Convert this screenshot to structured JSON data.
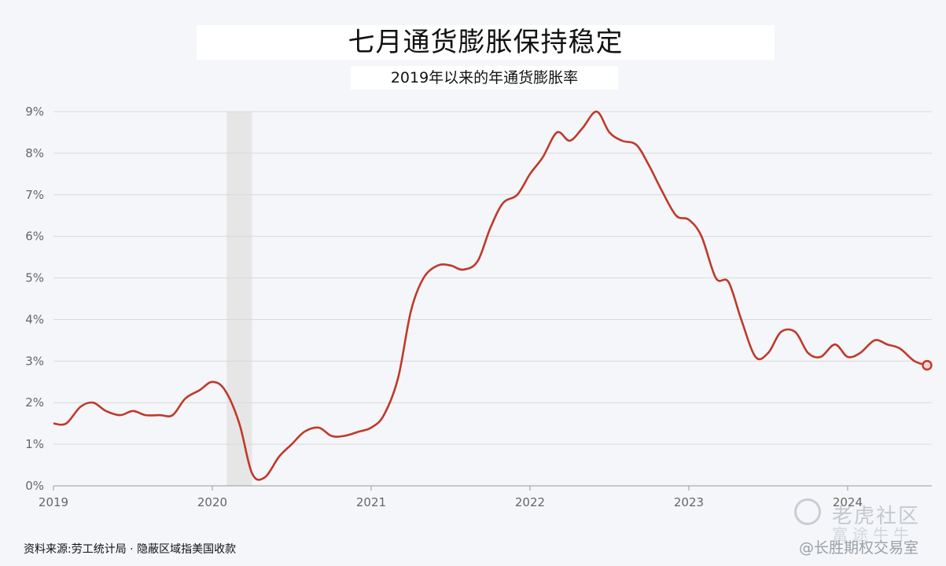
{
  "title": "七月通货膨胀保持稳定",
  "subtitle": "2019年以来的年通货膨胀率",
  "source": "资料来源:劳工统计局 · 隐蔽区域指美国收款",
  "watermark": {
    "line1": "老虎社区",
    "line2": "富途牛牛",
    "line3": "@长胜期权交易室"
  },
  "colors": {
    "line": "#c0392b",
    "shade": "#e6e6e6",
    "grid": "#d9d9d9"
  },
  "chart_data": {
    "type": "line",
    "title": "七月通货膨胀保持稳定",
    "subtitle": "2019年以来的年通货膨胀率",
    "xlim": [
      2019.0,
      2024.53
    ],
    "ylim": [
      0,
      9
    ],
    "x_ticks": [
      "2019",
      "2020",
      "2021",
      "2022",
      "2023",
      "2024"
    ],
    "y_ticks": [
      "0%",
      "1%",
      "2%",
      "3%",
      "4%",
      "5%",
      "6%",
      "7%",
      "8%",
      "9%"
    ],
    "shaded_region": [
      2020.09,
      2020.25
    ],
    "grid": true,
    "series": [
      {
        "values": [
          [
            2019.0,
            1.5
          ],
          [
            2019.08,
            1.5
          ],
          [
            2019.17,
            1.9
          ],
          [
            2019.25,
            2.0
          ],
          [
            2019.33,
            1.8
          ],
          [
            2019.42,
            1.7
          ],
          [
            2019.5,
            1.8
          ],
          [
            2019.58,
            1.7
          ],
          [
            2019.67,
            1.7
          ],
          [
            2019.75,
            1.7
          ],
          [
            2019.83,
            2.1
          ],
          [
            2019.92,
            2.3
          ],
          [
            2020.0,
            2.5
          ],
          [
            2020.08,
            2.3
          ],
          [
            2020.17,
            1.5
          ],
          [
            2020.25,
            0.3
          ],
          [
            2020.33,
            0.2
          ],
          [
            2020.42,
            0.7
          ],
          [
            2020.5,
            1.0
          ],
          [
            2020.58,
            1.3
          ],
          [
            2020.67,
            1.4
          ],
          [
            2020.75,
            1.2
          ],
          [
            2020.83,
            1.2
          ],
          [
            2020.92,
            1.3
          ],
          [
            2021.0,
            1.4
          ],
          [
            2021.08,
            1.7
          ],
          [
            2021.17,
            2.6
          ],
          [
            2021.25,
            4.2
          ],
          [
            2021.33,
            5.0
          ],
          [
            2021.42,
            5.3
          ],
          [
            2021.5,
            5.3
          ],
          [
            2021.58,
            5.2
          ],
          [
            2021.67,
            5.4
          ],
          [
            2021.75,
            6.2
          ],
          [
            2021.83,
            6.8
          ],
          [
            2021.92,
            7.0
          ],
          [
            2022.0,
            7.5
          ],
          [
            2022.08,
            7.9
          ],
          [
            2022.17,
            8.5
          ],
          [
            2022.25,
            8.3
          ],
          [
            2022.33,
            8.6
          ],
          [
            2022.42,
            9.0
          ],
          [
            2022.5,
            8.5
          ],
          [
            2022.58,
            8.3
          ],
          [
            2022.67,
            8.2
          ],
          [
            2022.75,
            7.7
          ],
          [
            2022.83,
            7.1
          ],
          [
            2022.92,
            6.5
          ],
          [
            2023.0,
            6.4
          ],
          [
            2023.08,
            6.0
          ],
          [
            2023.17,
            5.0
          ],
          [
            2023.25,
            4.9
          ],
          [
            2023.33,
            4.0
          ],
          [
            2023.42,
            3.1
          ],
          [
            2023.5,
            3.2
          ],
          [
            2023.58,
            3.7
          ],
          [
            2023.67,
            3.7
          ],
          [
            2023.75,
            3.2
          ],
          [
            2023.83,
            3.1
          ],
          [
            2023.92,
            3.4
          ],
          [
            2024.0,
            3.1
          ],
          [
            2024.08,
            3.2
          ],
          [
            2024.17,
            3.5
          ],
          [
            2024.25,
            3.4
          ],
          [
            2024.33,
            3.3
          ],
          [
            2024.42,
            3.0
          ],
          [
            2024.5,
            2.9
          ]
        ]
      }
    ]
  }
}
